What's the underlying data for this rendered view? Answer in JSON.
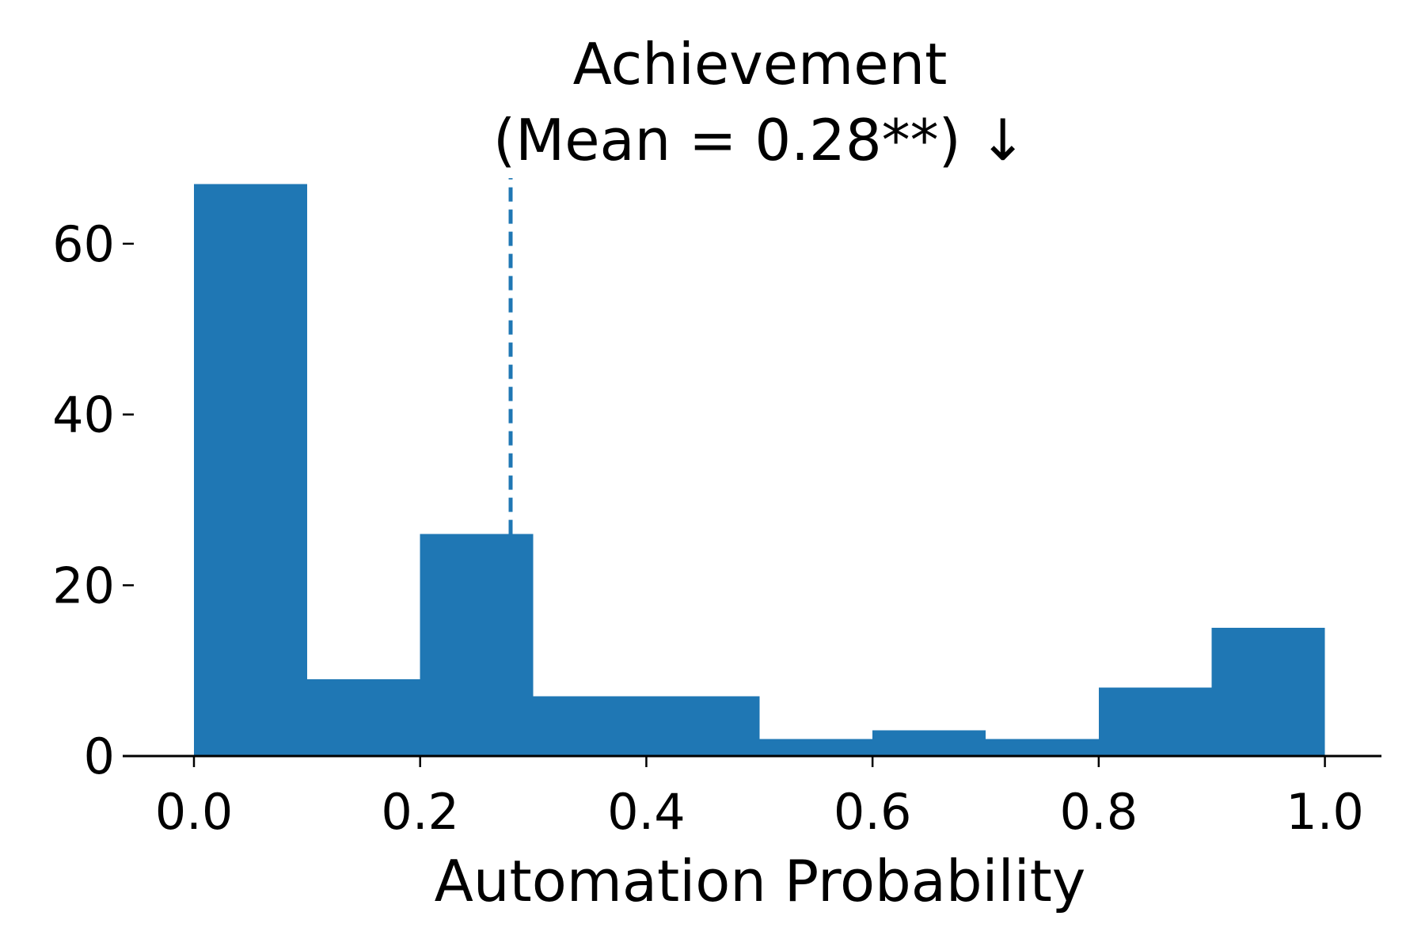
{
  "chart_data": {
    "type": "bar",
    "title": "Achievement",
    "subtitle": "(Mean = 0.28**) ↓",
    "xlabel": "Automation Probability",
    "ylabel": "",
    "bin_edges": [
      0.0,
      0.1,
      0.2,
      0.3,
      0.4,
      0.5,
      0.6,
      0.7,
      0.8,
      0.9,
      1.0
    ],
    "values": [
      67,
      9,
      26,
      7,
      7,
      2,
      3,
      2,
      8,
      15
    ],
    "xlim": [
      -0.063,
      1.05
    ],
    "ylim": [
      0,
      70
    ],
    "x_ticks": [
      0.0,
      0.2,
      0.4,
      0.6,
      0.8,
      1.0
    ],
    "x_tick_labels": [
      "0.0",
      "0.2",
      "0.4",
      "0.6",
      "0.8",
      "1.0"
    ],
    "y_ticks": [
      0,
      20,
      40,
      60
    ],
    "y_tick_labels": [
      "0",
      "20",
      "40",
      "60"
    ],
    "mean_line": {
      "x": 0.28,
      "style": "dashed"
    },
    "bar_color": "#1f77b4",
    "grid": false,
    "legend": "none"
  }
}
